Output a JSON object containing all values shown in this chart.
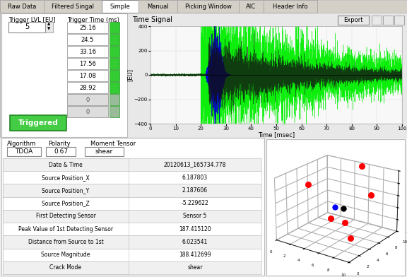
{
  "tabs": [
    "Raw Data",
    "Filtered Singal",
    "Simple",
    "Manual",
    "Picking Window",
    "AIC",
    "Header Info"
  ],
  "active_tab": "Simple",
  "trigger_lvl": "5",
  "trigger_times": [
    "25.16",
    "24.5",
    "33.16",
    "17.56",
    "17.08",
    "28.92",
    "0",
    "0"
  ],
  "time_signal_title": "Time Signal",
  "time_xlim": [
    0,
    100
  ],
  "time_ylim": [
    -400,
    400
  ],
  "time_xlabel": "Time [msec]",
  "time_ylabel": "[EU]",
  "time_yticks": [
    -400,
    -200,
    0,
    200,
    400
  ],
  "time_xticks": [
    0,
    10,
    20,
    30,
    40,
    50,
    60,
    70,
    80,
    90,
    100
  ],
  "algorithm": "TDOA",
  "polarity": "0.67",
  "moment_tensor": "shear",
  "table_labels": [
    "Date & Time",
    "Source Position_X",
    "Source Position_Y",
    "Source Position_Z",
    "First Detecting Sensor",
    "Peak Value of 1st Detecting Sensor",
    "Distance from Source to 1st",
    "Source Magnitude",
    "Crack Mode"
  ],
  "table_values": [
    "20120613_165734.778",
    "6.187803",
    "2.187606",
    "-5.229622",
    "Sensor 5",
    "187.415120",
    "6.023541",
    "188.412699",
    "shear"
  ],
  "bg_color": "#f0f0f0",
  "panel_color": "#e8e8e8",
  "white": "#ffffff",
  "green_button": "#44cc44",
  "tab_bg": "#d4d0c8",
  "active_tab_bg": "#ffffff",
  "border_color": "#999999",
  "signal_plot_bg": "#f8f8f8",
  "3d_dots_red_x": [
    5.0,
    0.5,
    9.5,
    5.5,
    8.5,
    4.0
  ],
  "3d_dots_red_y": [
    10.0,
    5.5,
    5.0,
    3.0,
    2.5,
    8.0
  ],
  "3d_dots_red_z": [
    -0.5,
    -3.0,
    -2.0,
    -6.0,
    -8.0,
    -9.5
  ],
  "3d_dot_black": [
    5.5,
    5.5,
    -5.5
  ],
  "3d_dot_blue": [
    4.5,
    5.2,
    -5.5
  ],
  "tab_widths": [
    62,
    82,
    52,
    55,
    87,
    35,
    76
  ]
}
